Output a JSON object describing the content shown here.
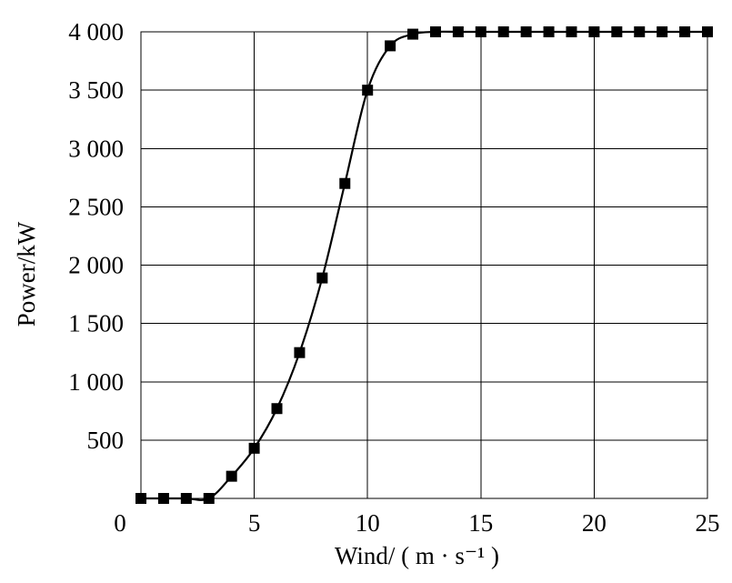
{
  "chart_data": {
    "type": "line",
    "xlabel": "Wind/ ( m · s⁻¹ )",
    "ylabel": "Power/kW",
    "xlim": [
      0,
      25
    ],
    "ylim": [
      0,
      4000
    ],
    "x_ticks": [
      "0",
      "5",
      "10",
      "15",
      "20",
      "25"
    ],
    "y_ticks": [
      "500",
      "1 000",
      "1 500",
      "2 000",
      "2 500",
      "3 000",
      "3 500",
      "4 000"
    ],
    "grid": true,
    "marker": "square",
    "series": [
      {
        "x": [
          0,
          1,
          2,
          3,
          4,
          5,
          6,
          7,
          8,
          9,
          10,
          11,
          12,
          13,
          14,
          15,
          16,
          17,
          18,
          19,
          20,
          21,
          22,
          23,
          24,
          25
        ],
        "y": [
          0,
          0,
          0,
          0,
          190,
          430,
          770,
          1250,
          1890,
          2700,
          3500,
          3880,
          3980,
          4000,
          4000,
          4000,
          4000,
          4000,
          4000,
          4000,
          4000,
          4000,
          4000,
          4000,
          4000,
          4000
        ]
      }
    ]
  }
}
